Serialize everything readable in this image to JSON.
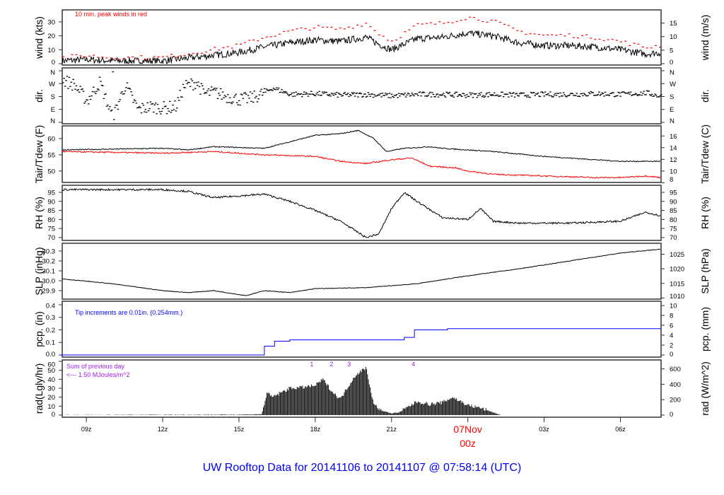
{
  "title": "UW Rooftop Data for 20141106  to  20141107 @ 07:58:14  (UTC)",
  "colors": {
    "black": "#000000",
    "red": "#ff0000",
    "blue": "#0000ff",
    "purple": "#a020f0",
    "title": "#0000ff"
  },
  "chart_data": {
    "type": "line",
    "xlim": [
      8.05,
      31.6
    ],
    "x_units": "hours since 06Nov 00z",
    "x_ticks": [
      {
        "x": 9,
        "label": "09z"
      },
      {
        "x": 12,
        "label": "12z"
      },
      {
        "x": 15,
        "label": "15z"
      },
      {
        "x": 18,
        "label": "18z"
      },
      {
        "x": 21,
        "label": "21z"
      },
      {
        "x": 24,
        "label": "07Nov",
        "label2": "00z",
        "highlight": true
      },
      {
        "x": 27,
        "label": "03z"
      },
      {
        "x": 30,
        "label": "06z"
      }
    ],
    "panels": [
      {
        "id": "wind",
        "left_label": "wind (kts)",
        "right_label": "wind (m/s)",
        "ylim": [
          -1,
          38.6
        ],
        "left_ticks": [
          "0",
          "10",
          "20",
          "30"
        ],
        "left_tick_values": [
          0,
          10,
          20,
          30
        ],
        "right_ticks": [
          "0",
          "5",
          "10",
          "15"
        ],
        "right_tick_values": [
          0,
          5,
          10,
          15
        ],
        "right_to_left_factor": 1.944,
        "annotation": "10 min. peak winds in red",
        "series": [
          {
            "name": "wind speed",
            "color": "#000000",
            "noise": 2.5,
            "x": [
              8,
              9,
              10,
              11,
              12,
              13,
              14,
              15,
              16,
              17,
              18,
              19,
              20,
              20.5,
              21,
              21.5,
              22,
              23,
              24,
              25,
              26,
              27,
              28,
              29,
              30,
              31,
              31.6
            ],
            "y": [
              2,
              3,
              2,
              2,
              2,
              4,
              6,
              8,
              12,
              15,
              17,
              16,
              19,
              14,
              10,
              14,
              18,
              19,
              22,
              20,
              15,
              13,
              13,
              12,
              10,
              7,
              8
            ]
          },
          {
            "name": "10 min peak",
            "color": "#ff0000",
            "style": "dashes",
            "peak_factor": 1.45
          }
        ]
      },
      {
        "id": "dir",
        "left_label": "dir.",
        "right_label": "dir.",
        "ylim": [
          -10,
          380
        ],
        "left_ticks": [
          "N",
          "E",
          "S",
          "W",
          "N"
        ],
        "left_tick_values": [
          0,
          90,
          180,
          270,
          360
        ],
        "right_ticks": [
          "N",
          "E",
          "S",
          "W",
          "N"
        ],
        "right_tick_values": [
          0,
          90,
          180,
          270,
          360
        ],
        "right_to_left_factor": 1,
        "series": [
          {
            "name": "wind direction",
            "color": "#000000",
            "style": "points",
            "noise": 18,
            "x": [
              8,
              8.5,
              9,
              9.5,
              10,
              10.5,
              11,
              11.5,
              12,
              12.5,
              12.8,
              13.3,
              13.6,
              14,
              14.5,
              15,
              15.5,
              16,
              16.3,
              17,
              18,
              19,
              20,
              21,
              22,
              23,
              24,
              25,
              26,
              27,
              28,
              29,
              30,
              31,
              31.6
            ],
            "y": [
              300,
              260,
              150,
              280,
              30,
              260,
              90,
              110,
              100,
              110,
              250,
              280,
              200,
              210,
              180,
              160,
              170,
              210,
              240,
              195,
              200,
              190,
              195,
              185,
              195,
              195,
              190,
              195,
              190,
              195,
              195,
              200,
              195,
              205,
              180
            ]
          }
        ]
      },
      {
        "id": "temp",
        "left_label": "Tair/Tdew (F)",
        "right_label": "Tair/Tdew (C)",
        "ylim": [
          46.5,
          63.9
        ],
        "left_ticks": [
          "50",
          "55",
          "60"
        ],
        "left_tick_values": [
          50,
          55,
          60
        ],
        "right_ticks": [
          "8",
          "10",
          "12",
          "14",
          "16"
        ],
        "right_tick_values": [
          8,
          10,
          12,
          14,
          16
        ],
        "right_to_left_factor": "C_to_F",
        "series": [
          {
            "name": "Tair",
            "color": "#000000",
            "noise": 0.15,
            "x": [
              8,
              12,
              13,
              14,
              16,
              17,
              18,
              19,
              19.7,
              20.3,
              20.8,
              21.5,
              22.5,
              23,
              25,
              27,
              29,
              30,
              31.6
            ],
            "y": [
              56.5,
              57,
              56.5,
              57.5,
              57,
              59,
              61,
              61.5,
              62.5,
              60,
              56,
              57,
              57.5,
              57,
              56,
              54.5,
              53.5,
              53,
              53
            ]
          },
          {
            "name": "Tdew",
            "color": "#ff0000",
            "noise": 0.2,
            "x": [
              8,
              12,
              14,
              16,
              18,
              19,
              20,
              21,
              21.8,
              22.5,
              23.5,
              24,
              25,
              27,
              29,
              30,
              31,
              31.6
            ],
            "y": [
              56,
              55.5,
              56,
              55,
              54.5,
              53,
              52.3,
              53.5,
              54,
              51.5,
              51,
              50,
              49,
              48.5,
              48,
              48,
              48.5,
              48
            ]
          }
        ]
      },
      {
        "id": "rh",
        "left_label": "RH (%)",
        "right_label": "RH (%)",
        "ylim": [
          68.4,
          98.9
        ],
        "left_ticks": [
          "70",
          "75",
          "80",
          "85",
          "90",
          "95"
        ],
        "left_tick_values": [
          70,
          75,
          80,
          85,
          90,
          95
        ],
        "right_ticks": [
          "70",
          "75",
          "80",
          "85",
          "90",
          "95"
        ],
        "right_tick_values": [
          70,
          75,
          80,
          85,
          90,
          95
        ],
        "right_to_left_factor": 1,
        "series": [
          {
            "name": "RH",
            "color": "#000000",
            "noise": 0.5,
            "x": [
              8,
              12,
              13,
              14,
              15,
              16,
              17,
              18,
              19,
              20,
              20.5,
              21,
              21.5,
              22,
              23,
              24,
              24.5,
              25,
              26,
              28,
              30,
              31,
              31.6
            ],
            "y": [
              96.5,
              96.5,
              95.5,
              92,
              93,
              94,
              90,
              85,
              79,
              70,
              72,
              86,
              95,
              90,
              81,
              80,
              86,
              79,
              78,
              78,
              79,
              84,
              82
            ]
          }
        ]
      },
      {
        "id": "slp",
        "left_label": "SLP (inHg)",
        "right_label": "SLP (hPa)",
        "ylim": [
          29.814,
          30.379
        ],
        "left_ticks": [
          "29.9",
          "30.0",
          "30.1",
          "30.2",
          "30.3"
        ],
        "left_tick_values": [
          29.9,
          30.0,
          30.1,
          30.2,
          30.3
        ],
        "right_ticks": [
          "1010",
          "1015",
          "1020",
          "1025"
        ],
        "right_tick_values": [
          1010,
          1015,
          1020,
          1025
        ],
        "right_to_left_factor": 33.8639,
        "series": [
          {
            "name": "SLP",
            "color": "#000000",
            "noise": 0.003,
            "x": [
              8,
              10,
              12,
              13,
              14,
              15,
              15.3,
              16,
              17,
              18,
              20,
              22,
              24,
              26,
              28,
              30,
              31.6
            ],
            "y": [
              30.02,
              29.97,
              29.9,
              29.88,
              29.9,
              29.86,
              29.85,
              29.9,
              29.88,
              29.92,
              29.93,
              29.97,
              30.05,
              30.12,
              30.2,
              30.28,
              30.32
            ]
          }
        ]
      },
      {
        "id": "pcp",
        "left_label": "pcp. (in)",
        "right_label": "pcp. (mm)",
        "ylim": [
          -0.017,
          0.428
        ],
        "left_ticks": [
          "0.0",
          "0.1",
          "0.2",
          "0.3",
          "0.4"
        ],
        "left_tick_values": [
          0,
          0.1,
          0.2,
          0.3,
          0.4
        ],
        "right_ticks": [
          "0",
          "2",
          "4",
          "6",
          "8",
          "10"
        ],
        "right_tick_values": [
          0,
          2,
          4,
          6,
          8,
          10
        ],
        "right_to_left_factor": 25.4,
        "annotation": "Tip increments are 0.01in. (0.254mm.)",
        "series": [
          {
            "name": "precip",
            "color": "#0000ff",
            "style": "step",
            "x": [
              8,
              15.9,
              16,
              16.4,
              17,
              21.2,
              21.5,
              21.9,
              23.2,
              31.6
            ],
            "y": [
              0,
              0,
              0.07,
              0.11,
              0.12,
              0.12,
              0.14,
              0.2,
              0.21,
              0.21
            ]
          }
        ]
      },
      {
        "id": "rad",
        "left_label": "rad(Lgly/hr)",
        "right_label": "rad (W/m^2)",
        "ylim": [
          -2.4,
          61.6
        ],
        "left_ticks": [
          "0",
          "10",
          "20",
          "30",
          "40",
          "50",
          "60"
        ],
        "left_tick_values": [
          0,
          10,
          20,
          30,
          40,
          50,
          60
        ],
        "right_ticks": [
          "0",
          "200",
          "400",
          "600"
        ],
        "right_tick_values": [
          0,
          200,
          400,
          600
        ],
        "right_to_left_factor": 11.63,
        "annotation": "Sum of previous day",
        "annotation2": "<--- 1.50 MJoules/m^2",
        "markers": [
          {
            "x": 17.86,
            "label": "1"
          },
          {
            "x": 18.64,
            "label": "2"
          },
          {
            "x": 19.33,
            "label": "3"
          },
          {
            "x": 21.86,
            "label": "4"
          }
        ],
        "series": [
          {
            "name": "radiation",
            "color": "#222222",
            "style": "bars",
            "noise": 4,
            "x": [
              8,
              15,
              15.9,
              16.1,
              16.3,
              17,
              17.5,
              18,
              18.3,
              18.7,
              19,
              19.2,
              19.6,
              20,
              20.3,
              20.6,
              21,
              21.3,
              22,
              22.5,
              23,
              23.4,
              24,
              24.5,
              25.1,
              25.3,
              31.6
            ],
            "y": [
              0,
              0.5,
              1,
              25,
              20,
              30,
              31,
              33,
              40,
              25,
              18,
              28,
              45,
              53,
              12,
              5,
              2,
              3,
              15,
              12,
              14,
              20,
              11,
              8,
              2,
              0,
              0
            ]
          }
        ]
      }
    ]
  }
}
